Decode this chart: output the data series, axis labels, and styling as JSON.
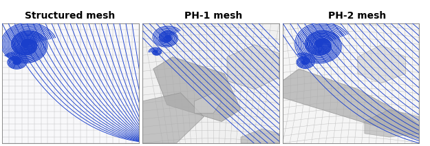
{
  "titles": [
    "Structured mesh",
    "PH-1 mesh",
    "PH-2 mesh"
  ],
  "title_fontsize": 10,
  "title_fontweight": "bold",
  "fig_width": 6.25,
  "fig_height": 2.12,
  "bg_color": "#ffffff",
  "grid_color": "#cccccc",
  "streamline_color": "#1a3fcc",
  "mesh_gray_dark": "#999999",
  "mesh_gray_light": "#cccccc",
  "panel_bg": "#f5f5f5"
}
